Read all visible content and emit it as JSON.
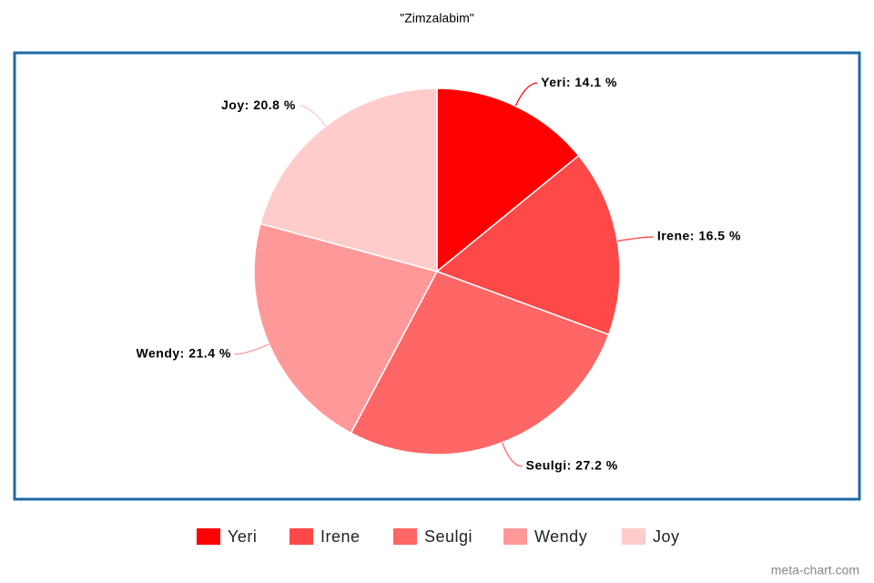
{
  "chart_data": {
    "type": "pie",
    "title": "\"Zimzalabim\"",
    "categories": [
      "Yeri",
      "Irene",
      "Seulgi",
      "Wendy",
      "Joy"
    ],
    "values": [
      14.1,
      16.5,
      27.2,
      21.4,
      20.8
    ],
    "value_labels": [
      "Yeri: 14.1 %",
      "Irene: 16.5 %",
      "Seulgi: 27.2 %",
      "Wendy: 21.4 %",
      "Joy: 20.8 %"
    ],
    "colors": [
      "#ff0000",
      "#ff4848",
      "#ff6666",
      "#ff9999",
      "#ffcccc"
    ],
    "legend": "bottom",
    "watermark": "meta-chart.com"
  }
}
